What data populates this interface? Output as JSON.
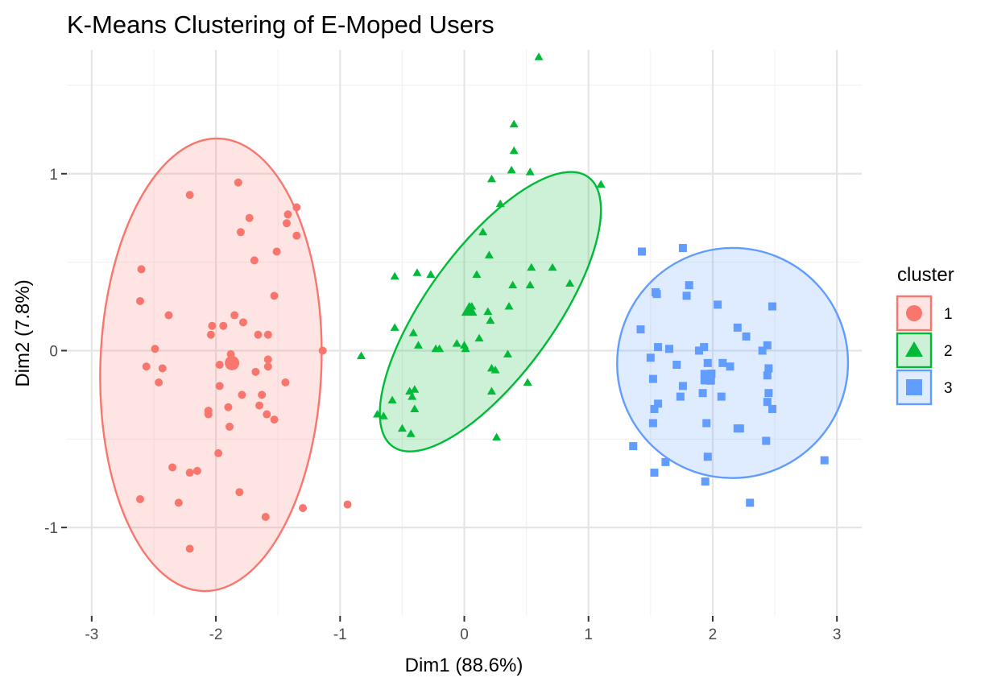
{
  "chart_data": {
    "type": "scatter",
    "title": "K-Means Clustering of E-Moped Users",
    "xlabel": "Dim1 (88.6%)",
    "ylabel": "Dim2 (7.8%)",
    "xlim": [
      -3.2,
      3.2
    ],
    "ylim": [
      -1.5,
      1.7
    ],
    "x_ticks": [
      -3,
      -2,
      -1,
      0,
      1,
      2,
      3
    ],
    "y_ticks": [
      -1,
      0,
      1
    ],
    "x_tick_labels": [
      "-3",
      "-2",
      "-1",
      "0",
      "1",
      "2",
      "3"
    ],
    "y_tick_labels": [
      "-1",
      "0",
      "1"
    ],
    "grid": true,
    "legend": {
      "title": "cluster",
      "position": "right"
    },
    "series": [
      {
        "name": "1",
        "marker": "circle",
        "color": "#F8766D",
        "centroid": [
          -1.87,
          -0.07
        ],
        "ellipse": {
          "center": [
            -2.04,
            -0.08
          ],
          "rx": 0.89,
          "ry": 1.28,
          "angle": -2
        },
        "points": [
          [
            -2.21,
            0.88
          ],
          [
            -1.82,
            0.95
          ],
          [
            -1.73,
            0.75
          ],
          [
            -1.8,
            0.67
          ],
          [
            -1.42,
            0.77
          ],
          [
            -1.35,
            0.81
          ],
          [
            -1.43,
            0.72
          ],
          [
            -1.35,
            0.65
          ],
          [
            -2.6,
            0.46
          ],
          [
            -1.69,
            0.51
          ],
          [
            -1.51,
            0.56
          ],
          [
            -2.61,
            0.28
          ],
          [
            -1.53,
            0.31
          ],
          [
            -2.38,
            0.2
          ],
          [
            -2.03,
            0.14
          ],
          [
            -1.94,
            0.14
          ],
          [
            -1.78,
            0.16
          ],
          [
            -1.85,
            0.2
          ],
          [
            -1.66,
            0.09
          ],
          [
            -1.58,
            0.09
          ],
          [
            -2.04,
            0.09
          ],
          [
            -2.49,
            0.01
          ],
          [
            -1.88,
            -0.02
          ],
          [
            -1.14,
            0.0
          ],
          [
            -2.56,
            -0.09
          ],
          [
            -2.43,
            -0.1
          ],
          [
            -1.58,
            -0.05
          ],
          [
            -1.58,
            -0.09
          ],
          [
            -2.46,
            -0.18
          ],
          [
            -1.97,
            -0.08
          ],
          [
            -1.68,
            -0.12
          ],
          [
            -1.44,
            -0.18
          ],
          [
            -1.97,
            -0.2
          ],
          [
            -2.06,
            -0.34
          ],
          [
            -2.06,
            -0.36
          ],
          [
            -1.79,
            -0.25
          ],
          [
            -1.63,
            -0.25
          ],
          [
            -1.9,
            -0.32
          ],
          [
            -1.65,
            -0.31
          ],
          [
            -1.59,
            -0.36
          ],
          [
            -1.53,
            -0.39
          ],
          [
            -1.89,
            -0.43
          ],
          [
            -1.98,
            -0.58
          ],
          [
            -2.35,
            -0.66
          ],
          [
            -2.15,
            -0.68
          ],
          [
            -2.21,
            -0.69
          ],
          [
            -1.81,
            -0.8
          ],
          [
            -2.61,
            -0.84
          ],
          [
            -2.3,
            -0.86
          ],
          [
            -1.3,
            -0.89
          ],
          [
            -1.6,
            -0.94
          ],
          [
            -0.94,
            -0.87
          ],
          [
            -2.21,
            -1.12
          ]
        ]
      },
      {
        "name": "2",
        "marker": "triangle",
        "color": "#00BA38",
        "centroid": [
          0.04,
          0.23
        ],
        "ellipse": {
          "center": [
            0.21,
            0.22
          ],
          "rx": 1.34,
          "ry": 0.36,
          "angle": 54
        },
        "points": [
          [
            0.6,
            1.66
          ],
          [
            0.4,
            1.28
          ],
          [
            0.4,
            1.13
          ],
          [
            0.38,
            1.02
          ],
          [
            0.53,
            1.01
          ],
          [
            1.1,
            0.94
          ],
          [
            0.22,
            0.97
          ],
          [
            0.29,
            0.83
          ],
          [
            0.15,
            0.67
          ],
          [
            0.2,
            0.54
          ],
          [
            0.54,
            0.47
          ],
          [
            0.71,
            0.47
          ],
          [
            0.85,
            0.38
          ],
          [
            0.53,
            0.37
          ],
          [
            0.39,
            0.37
          ],
          [
            -0.56,
            0.42
          ],
          [
            -0.38,
            0.44
          ],
          [
            -0.27,
            0.43
          ],
          [
            0.1,
            0.43
          ],
          [
            0.04,
            0.24
          ],
          [
            0.06,
            0.25
          ],
          [
            0.03,
            0.23
          ],
          [
            0.36,
            0.25
          ],
          [
            0.19,
            0.22
          ],
          [
            0.21,
            0.17
          ],
          [
            -0.56,
            0.13
          ],
          [
            -0.41,
            0.1
          ],
          [
            -0.37,
            0.03
          ],
          [
            -0.23,
            0.01
          ],
          [
            -0.2,
            0.01
          ],
          [
            -0.06,
            0.04
          ],
          [
            0.12,
            0.07
          ],
          [
            0.01,
            0.01
          ],
          [
            0.0,
            0.03
          ],
          [
            0.35,
            -0.02
          ],
          [
            -0.83,
            -0.03
          ],
          [
            0.22,
            -0.1
          ],
          [
            0.25,
            -0.11
          ],
          [
            0.51,
            -0.18
          ],
          [
            -0.44,
            -0.23
          ],
          [
            -0.4,
            -0.22
          ],
          [
            -0.42,
            -0.26
          ],
          [
            -0.58,
            -0.28
          ],
          [
            0.22,
            -0.23
          ],
          [
            -0.4,
            -0.33
          ],
          [
            -0.7,
            -0.36
          ],
          [
            -0.65,
            -0.37
          ],
          [
            -0.5,
            -0.44
          ],
          [
            -0.43,
            -0.47
          ],
          [
            0.26,
            -0.49
          ]
        ]
      },
      {
        "name": "3",
        "marker": "square",
        "color": "#619CFF",
        "centroid": [
          1.96,
          -0.15
        ],
        "ellipse": {
          "center": [
            2.16,
            -0.07
          ],
          "rx": 0.93,
          "ry": 0.65,
          "angle": 22
        },
        "points": [
          [
            1.43,
            0.56
          ],
          [
            1.76,
            0.58
          ],
          [
            1.54,
            0.33
          ],
          [
            1.55,
            0.32
          ],
          [
            1.81,
            0.37
          ],
          [
            1.79,
            0.31
          ],
          [
            2.04,
            0.26
          ],
          [
            2.48,
            0.25
          ],
          [
            1.42,
            0.12
          ],
          [
            2.2,
            0.13
          ],
          [
            2.27,
            0.08
          ],
          [
            1.56,
            0.02
          ],
          [
            1.65,
            0.01
          ],
          [
            1.93,
            0.02
          ],
          [
            1.89,
            0.0
          ],
          [
            2.44,
            0.03
          ],
          [
            2.4,
            0.0
          ],
          [
            1.5,
            -0.04
          ],
          [
            1.71,
            -0.08
          ],
          [
            1.96,
            -0.07
          ],
          [
            2.08,
            -0.07
          ],
          [
            2.14,
            -0.09
          ],
          [
            2.45,
            -0.1
          ],
          [
            2.44,
            -0.14
          ],
          [
            1.52,
            -0.16
          ],
          [
            1.95,
            -0.15
          ],
          [
            1.98,
            -0.17
          ],
          [
            1.99,
            -0.13
          ],
          [
            1.76,
            -0.2
          ],
          [
            2.45,
            -0.24
          ],
          [
            1.92,
            -0.24
          ],
          [
            1.74,
            -0.26
          ],
          [
            2.07,
            -0.26
          ],
          [
            2.44,
            -0.29
          ],
          [
            1.56,
            -0.3
          ],
          [
            1.53,
            -0.33
          ],
          [
            2.48,
            -0.33
          ],
          [
            1.95,
            -0.41
          ],
          [
            1.52,
            -0.41
          ],
          [
            2.22,
            -0.44
          ],
          [
            2.2,
            -0.44
          ],
          [
            2.43,
            -0.51
          ],
          [
            1.36,
            -0.54
          ],
          [
            1.96,
            -0.6
          ],
          [
            1.62,
            -0.63
          ],
          [
            2.9,
            -0.62
          ],
          [
            1.53,
            -0.69
          ],
          [
            1.94,
            -0.74
          ],
          [
            2.3,
            -0.86
          ]
        ]
      }
    ]
  }
}
